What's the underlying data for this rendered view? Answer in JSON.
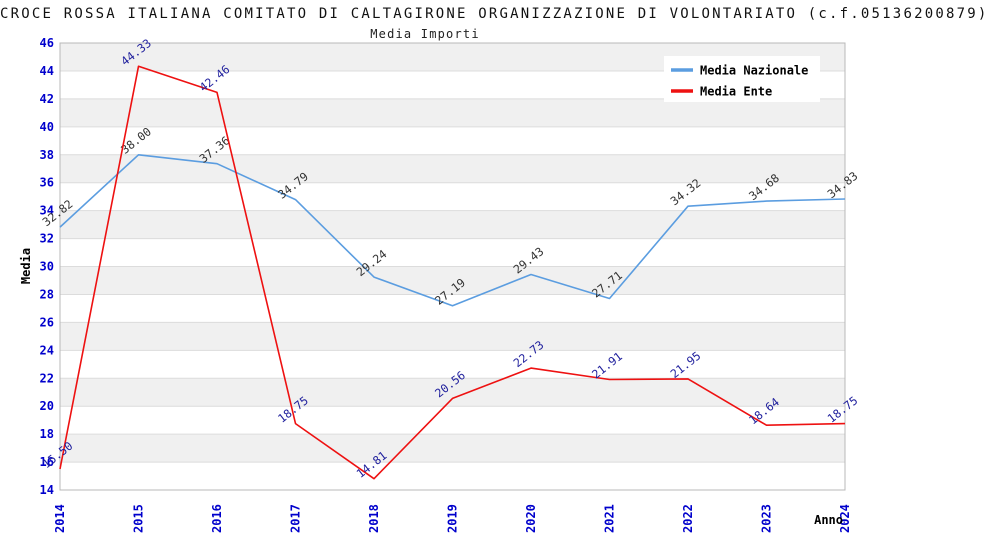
{
  "header": {
    "title": "CROCE ROSSA ITALIANA COMITATO DI CALTAGIRONE ORGANIZZAZIONE DI VOLONTARIATO (c.f.05136200879)",
    "subtitle": "Media Importi"
  },
  "chart_data": {
    "type": "line",
    "x": [
      2014,
      2015,
      2016,
      2017,
      2018,
      2019,
      2020,
      2021,
      2022,
      2023,
      2024
    ],
    "series": [
      {
        "name": "Media Nazionale",
        "color": "#5b9de0",
        "label_color": "#333333",
        "values": [
          32.82,
          38.0,
          37.36,
          34.79,
          29.24,
          27.19,
          29.43,
          27.71,
          34.32,
          34.68,
          34.83
        ],
        "labels": [
          "32.82",
          "38.00",
          "37.36",
          "34.79",
          "29.24",
          "27.19",
          "29.43",
          "27.71",
          "34.32",
          "34.68",
          "34.83"
        ]
      },
      {
        "name": "Media Ente",
        "color": "#ee1111",
        "label_color": "#22229e",
        "values": [
          15.5,
          44.33,
          42.46,
          18.75,
          14.81,
          20.56,
          22.73,
          21.91,
          21.95,
          18.64,
          18.75
        ],
        "labels": [
          "15.50",
          "44.33",
          "42.46",
          "18.75",
          "14.81",
          "20.56",
          "22.73",
          "21.91",
          "21.95",
          "18.64",
          "18.75"
        ]
      }
    ],
    "xlabel": "Anno",
    "ylabel": "Media",
    "ylim": [
      14,
      46
    ],
    "yticks": [
      14,
      16,
      18,
      20,
      22,
      24,
      26,
      28,
      30,
      32,
      34,
      36,
      38,
      40,
      42,
      44,
      46
    ],
    "grid": true,
    "legend_position": "top-right",
    "colors": {
      "tick_label": "#0000cc",
      "axis_title": "#000000",
      "band_gray": "#f0f0f0",
      "band_white": "#ffffff",
      "gridline": "#dcdcdc",
      "plot_border": "#b8b8b8",
      "legend_bg": "#ffffff",
      "legend_text": "#000000"
    }
  }
}
